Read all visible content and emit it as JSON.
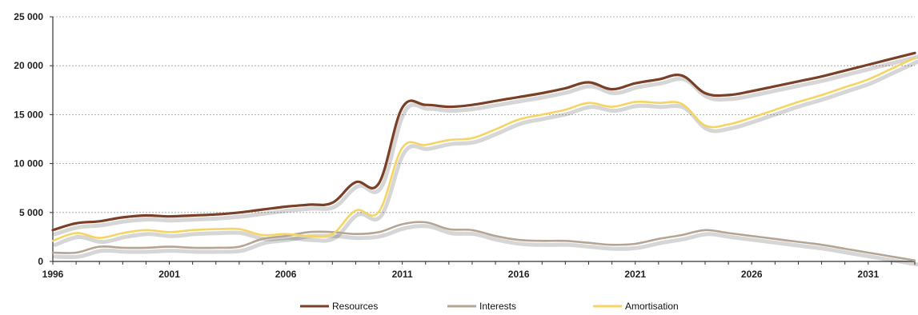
{
  "chart_data": {
    "type": "line",
    "title": "",
    "xlabel": "",
    "ylabel": "",
    "xlim": [
      1996,
      2033
    ],
    "ylim": [
      0,
      25000
    ],
    "x_ticks": [
      1996,
      2001,
      2006,
      2011,
      2016,
      2021,
      2026,
      2031
    ],
    "x_tick_labels": [
      "1996",
      "2001",
      "2006",
      "2011",
      "2016",
      "2021",
      "2026",
      "2031"
    ],
    "y_ticks": [
      0,
      5000,
      10000,
      15000,
      20000,
      25000
    ],
    "y_tick_labels": [
      "0",
      "5 000",
      "10 000",
      "15 000",
      "20 000",
      "25 000"
    ],
    "grid": "horizontal dotted",
    "legend_position": "bottom-center",
    "x": [
      1996,
      1997,
      1998,
      1999,
      2000,
      2001,
      2002,
      2003,
      2004,
      2005,
      2006,
      2007,
      2008,
      2009,
      2010,
      2011,
      2012,
      2013,
      2014,
      2015,
      2016,
      2017,
      2018,
      2019,
      2020,
      2021,
      2022,
      2023,
      2024,
      2025,
      2026,
      2027,
      2028,
      2029,
      2030,
      2031,
      2032,
      2033
    ],
    "series": [
      {
        "name": "Resources",
        "color": "#7a3f26",
        "values": [
          3200,
          3900,
          4100,
          4500,
          4700,
          4600,
          4700,
          4800,
          5000,
          5300,
          5600,
          5800,
          6000,
          8100,
          8000,
          15700,
          16000,
          15800,
          16000,
          16400,
          16800,
          17200,
          17700,
          18300,
          17600,
          18200,
          18600,
          19000,
          17200,
          17000,
          17400,
          17900,
          18400,
          18900,
          19500,
          20100,
          20700,
          21300
        ]
      },
      {
        "name": "Interests",
        "color": "#b4a493",
        "values": [
          900,
          900,
          1500,
          1400,
          1400,
          1500,
          1400,
          1400,
          1500,
          2300,
          2600,
          3000,
          3000,
          2800,
          3000,
          3800,
          4000,
          3300,
          3200,
          2600,
          2200,
          2100,
          2100,
          1900,
          1700,
          1800,
          2300,
          2700,
          3200,
          2900,
          2600,
          2300,
          2000,
          1700,
          1300,
          900,
          500,
          100
        ]
      },
      {
        "name": "Amortisation",
        "color": "#f6d462",
        "values": [
          2100,
          2900,
          2400,
          2900,
          3200,
          3000,
          3200,
          3300,
          3300,
          2700,
          2800,
          2600,
          2800,
          5200,
          5100,
          11600,
          11900,
          12400,
          12600,
          13500,
          14500,
          15000,
          15500,
          16200,
          15800,
          16300,
          16200,
          16100,
          13900,
          14000,
          14700,
          15500,
          16300,
          17000,
          17800,
          18600,
          19700,
          20800
        ]
      }
    ]
  }
}
